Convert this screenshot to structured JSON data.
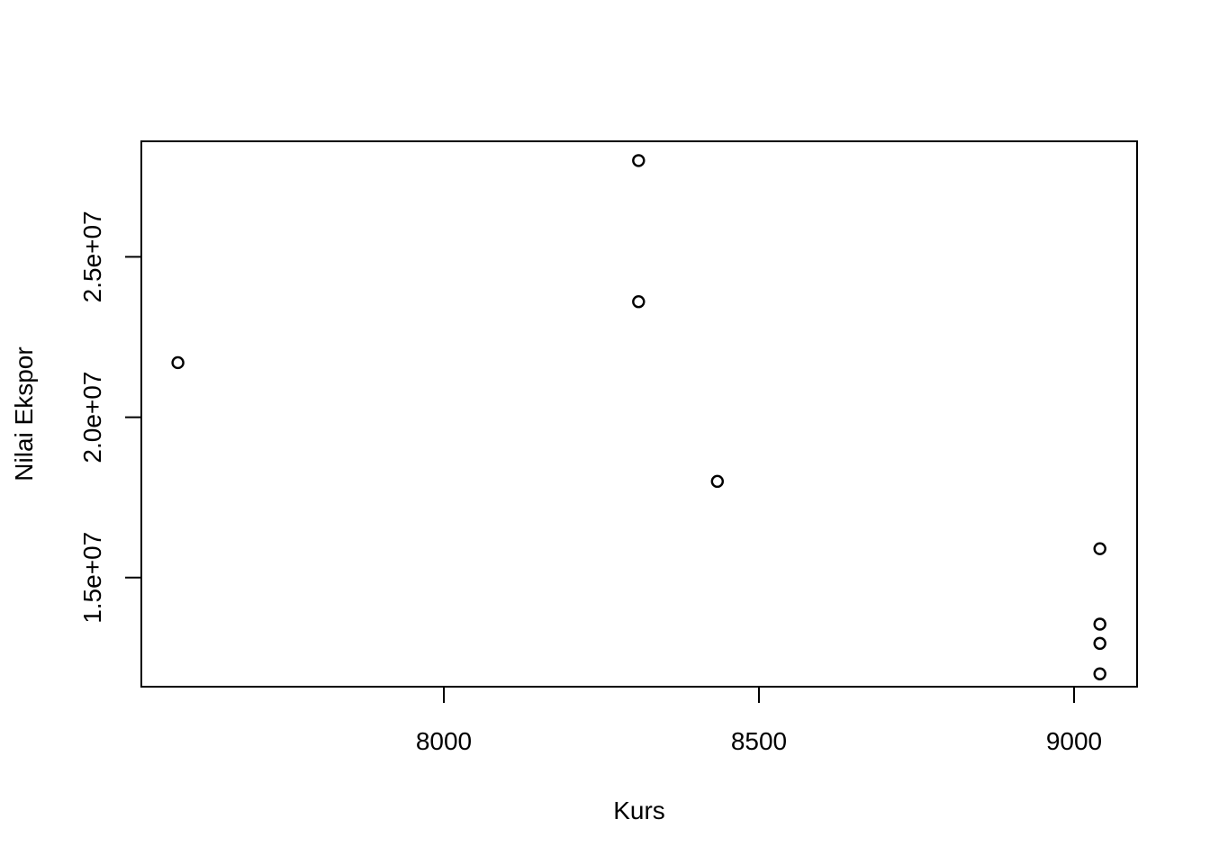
{
  "chart_data": {
    "type": "scatter",
    "title": "",
    "xlabel": "Kurs",
    "ylabel": "Nilai Ekspor",
    "xlim": [
      7520,
      9100
    ],
    "ylim": [
      11600000,
      28600000
    ],
    "x_ticks": [
      {
        "value": 8000,
        "label": "8000"
      },
      {
        "value": 8500,
        "label": "8500"
      },
      {
        "value": 9000,
        "label": "9000"
      }
    ],
    "y_ticks": [
      {
        "value": 15000000,
        "label": "1.5e+07"
      },
      {
        "value": 20000000,
        "label": "2.0e+07"
      },
      {
        "value": 25000000,
        "label": "2.5e+07"
      }
    ],
    "points": [
      {
        "x": 7578,
        "y": 21700000
      },
      {
        "x": 8309,
        "y": 28000000
      },
      {
        "x": 8309,
        "y": 23600000
      },
      {
        "x": 8434,
        "y": 18000000
      },
      {
        "x": 9041,
        "y": 15900000
      },
      {
        "x": 9041,
        "y": 13550000
      },
      {
        "x": 9041,
        "y": 12950000
      },
      {
        "x": 9041,
        "y": 12000000
      }
    ],
    "grid": false,
    "marker": "open-circle",
    "color": "#000000"
  }
}
